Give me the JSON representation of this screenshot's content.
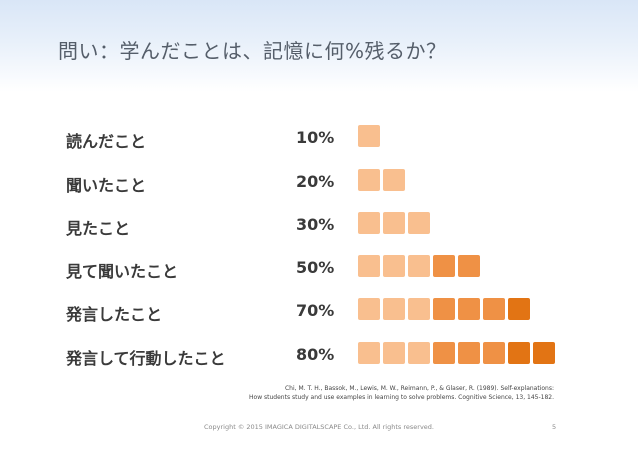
{
  "slide": {
    "title": "問い：学んだことは、記憶に何%残るか？",
    "rows": [
      {
        "label": "読んだこと",
        "value": "10%",
        "count": 1
      },
      {
        "label": "聞いたこと",
        "value": "20%",
        "count": 2
      },
      {
        "label": "見たこと",
        "value": "30%",
        "count": 3
      },
      {
        "label": "見て聞いたこと",
        "value": "50%",
        "count": 5
      },
      {
        "label": "発言したこと",
        "value": "70%",
        "count": 7
      },
      {
        "label": "発言して行動したこと",
        "value": "80%",
        "count": 8
      }
    ],
    "square_colors": [
      "#f9bf8f",
      "#f9bf8f",
      "#f9bf8f",
      "#ef9145",
      "#ef9145",
      "#ef9145",
      "#e27414",
      "#e27414"
    ],
    "citation_line1": "Chi, M. T. H., Bassok, M., Lewis, M. W., Reimann, P., & Glaser, R. (1989). Self-explanations:",
    "citation_line2": "How students study and use examples in learning to solve problems. Cognitive Science, 13, 145-182.",
    "copyright": "Copyright © 2015 IMAGICA DIGITALSCAPE Co., Ltd. All rights reserved.",
    "page_number": "5"
  }
}
